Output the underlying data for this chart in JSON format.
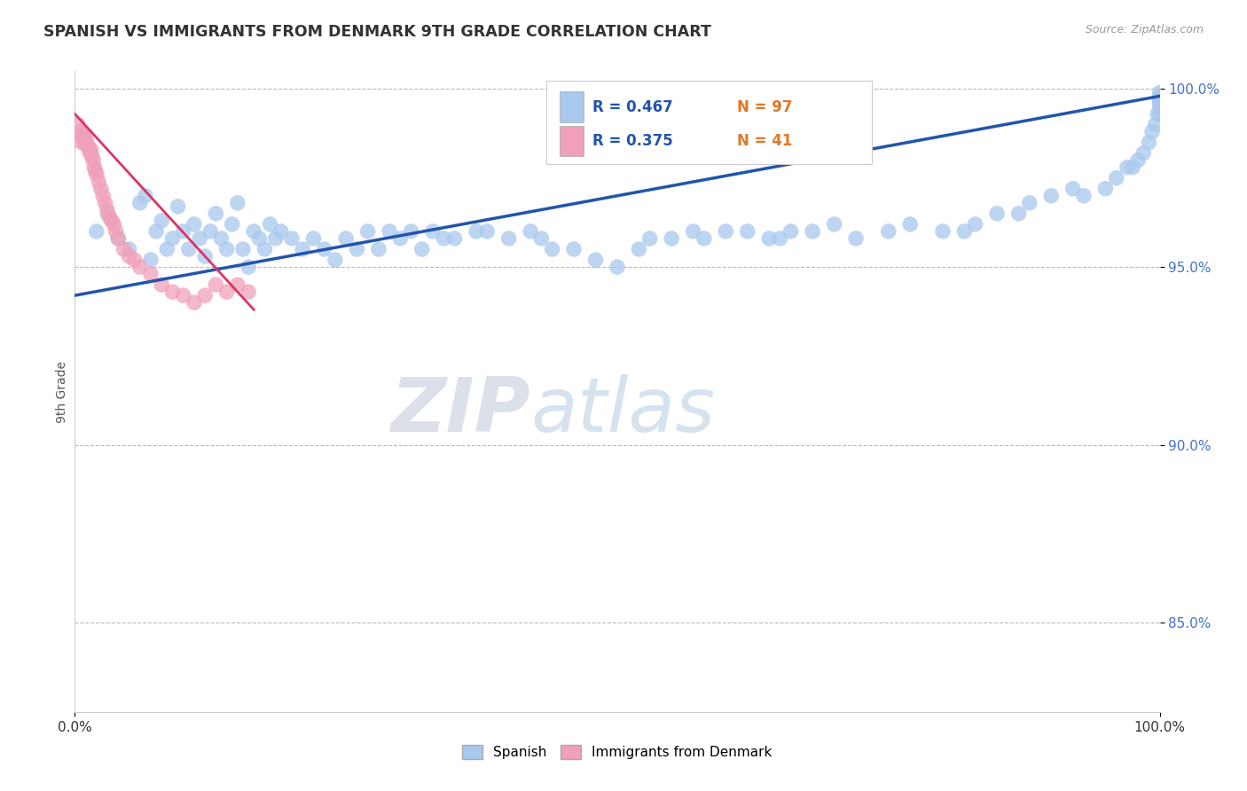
{
  "title": "SPANISH VS IMMIGRANTS FROM DENMARK 9TH GRADE CORRELATION CHART",
  "source_text": "Source: ZipAtlas.com",
  "ylabel": "9th Grade",
  "xlim": [
    0.0,
    1.0
  ],
  "ylim": [
    0.825,
    1.005
  ],
  "yticks": [
    0.85,
    0.9,
    0.95,
    1.0
  ],
  "ytick_labels": [
    "85.0%",
    "90.0%",
    "95.0%",
    "100.0%"
  ],
  "legend_r_blue": "R = 0.467",
  "legend_n_blue": "N = 97",
  "legend_r_pink": "R = 0.375",
  "legend_n_pink": "N = 41",
  "blue_color": "#A8C8EE",
  "pink_color": "#F0A0B8",
  "line_blue_color": "#2255AA",
  "line_pink_color": "#DD3366",
  "watermark_zip": "ZIP",
  "watermark_atlas": "atlas",
  "blue_x": [
    0.02,
    0.03,
    0.04,
    0.05,
    0.06,
    0.065,
    0.07,
    0.075,
    0.08,
    0.085,
    0.09,
    0.095,
    0.1,
    0.105,
    0.11,
    0.115,
    0.12,
    0.125,
    0.13,
    0.135,
    0.14,
    0.145,
    0.15,
    0.155,
    0.16,
    0.165,
    0.17,
    0.175,
    0.18,
    0.185,
    0.19,
    0.2,
    0.21,
    0.22,
    0.23,
    0.24,
    0.25,
    0.26,
    0.27,
    0.28,
    0.29,
    0.3,
    0.31,
    0.32,
    0.33,
    0.34,
    0.35,
    0.37,
    0.38,
    0.4,
    0.42,
    0.43,
    0.44,
    0.46,
    0.48,
    0.5,
    0.52,
    0.53,
    0.55,
    0.57,
    0.58,
    0.6,
    0.62,
    0.64,
    0.65,
    0.66,
    0.68,
    0.7,
    0.72,
    0.75,
    0.77,
    0.8,
    0.82,
    0.83,
    0.85,
    0.87,
    0.88,
    0.9,
    0.92,
    0.93,
    0.95,
    0.96,
    0.97,
    0.975,
    0.98,
    0.985,
    0.99,
    0.993,
    0.996,
    0.998,
    1.0,
    1.0,
    1.0,
    1.0,
    1.0,
    1.0,
    1.0
  ],
  "blue_y": [
    0.96,
    0.965,
    0.958,
    0.955,
    0.968,
    0.97,
    0.952,
    0.96,
    0.963,
    0.955,
    0.958,
    0.967,
    0.96,
    0.955,
    0.962,
    0.958,
    0.953,
    0.96,
    0.965,
    0.958,
    0.955,
    0.962,
    0.968,
    0.955,
    0.95,
    0.96,
    0.958,
    0.955,
    0.962,
    0.958,
    0.96,
    0.958,
    0.955,
    0.958,
    0.955,
    0.952,
    0.958,
    0.955,
    0.96,
    0.955,
    0.96,
    0.958,
    0.96,
    0.955,
    0.96,
    0.958,
    0.958,
    0.96,
    0.96,
    0.958,
    0.96,
    0.958,
    0.955,
    0.955,
    0.952,
    0.95,
    0.955,
    0.958,
    0.958,
    0.96,
    0.958,
    0.96,
    0.96,
    0.958,
    0.958,
    0.96,
    0.96,
    0.962,
    0.958,
    0.96,
    0.962,
    0.96,
    0.96,
    0.962,
    0.965,
    0.965,
    0.968,
    0.97,
    0.972,
    0.97,
    0.972,
    0.975,
    0.978,
    0.978,
    0.98,
    0.982,
    0.985,
    0.988,
    0.99,
    0.993,
    0.993,
    0.995,
    0.996,
    0.997,
    0.997,
    0.998,
    0.999
  ],
  "pink_x": [
    0.003,
    0.005,
    0.006,
    0.007,
    0.008,
    0.009,
    0.01,
    0.011,
    0.012,
    0.013,
    0.014,
    0.015,
    0.016,
    0.017,
    0.018,
    0.019,
    0.02,
    0.022,
    0.024,
    0.026,
    0.028,
    0.03,
    0.032,
    0.034,
    0.036,
    0.038,
    0.04,
    0.045,
    0.05,
    0.055,
    0.06,
    0.07,
    0.08,
    0.09,
    0.1,
    0.11,
    0.12,
    0.13,
    0.14,
    0.15,
    0.16
  ],
  "pink_y": [
    0.99,
    0.988,
    0.985,
    0.987,
    0.986,
    0.985,
    0.987,
    0.985,
    0.984,
    0.983,
    0.982,
    0.983,
    0.981,
    0.98,
    0.978,
    0.977,
    0.976,
    0.974,
    0.972,
    0.97,
    0.968,
    0.966,
    0.964,
    0.963,
    0.962,
    0.96,
    0.958,
    0.955,
    0.953,
    0.952,
    0.95,
    0.948,
    0.945,
    0.943,
    0.942,
    0.94,
    0.942,
    0.945,
    0.943,
    0.945,
    0.943
  ],
  "blue_line_x": [
    0.0,
    1.0
  ],
  "blue_line_y": [
    0.942,
    0.998
  ],
  "pink_line_x": [
    0.0,
    0.165
  ],
  "pink_line_y": [
    0.993,
    0.938
  ]
}
